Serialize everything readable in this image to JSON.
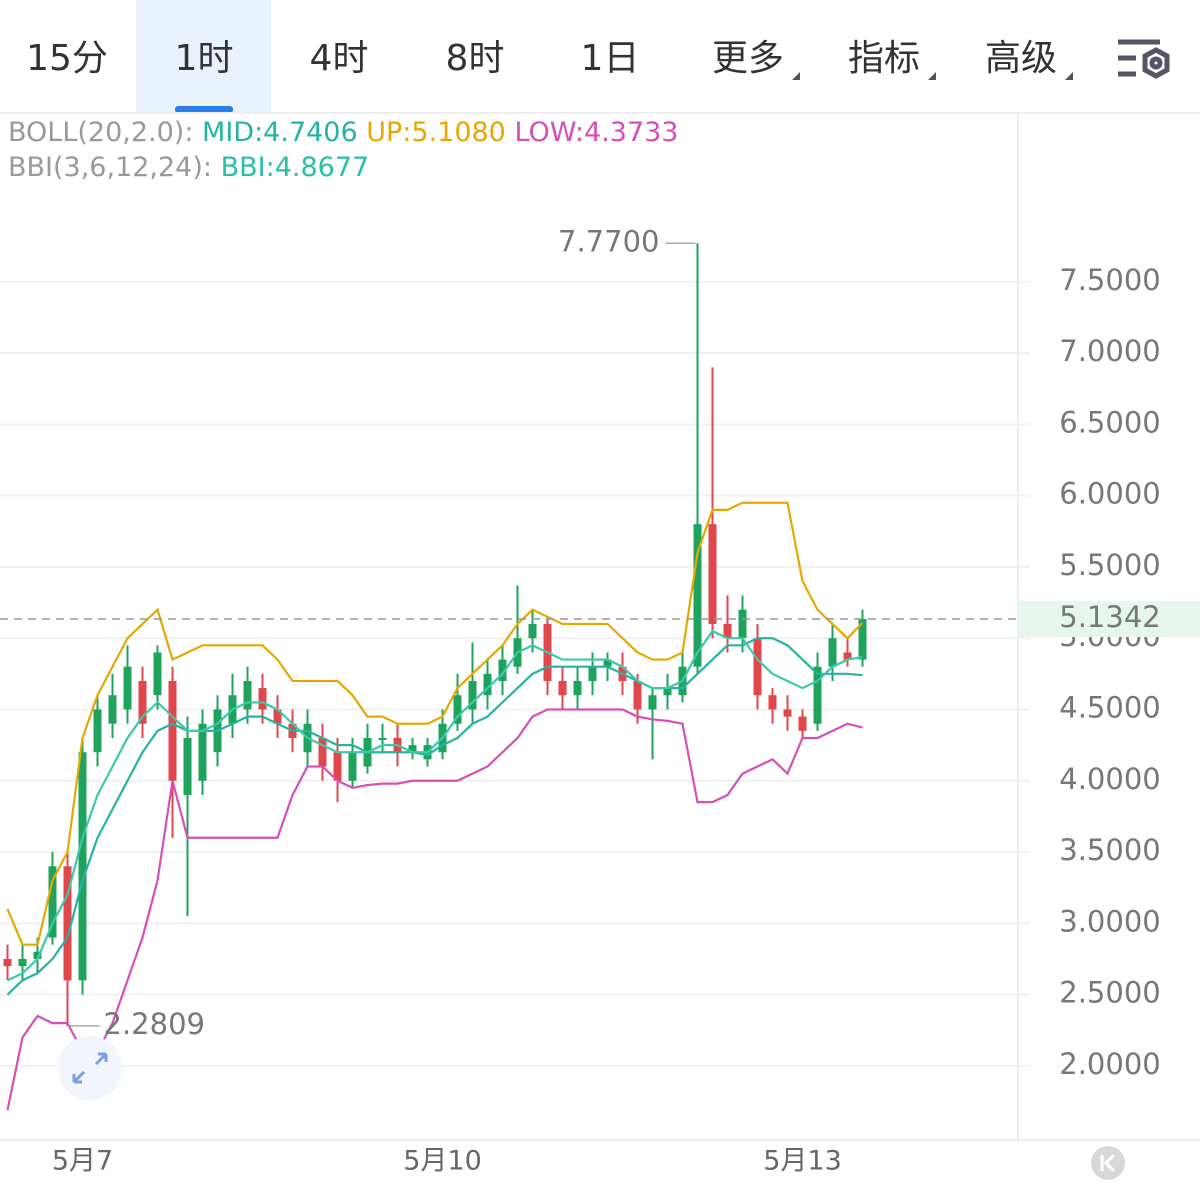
{
  "tabs": [
    "15分",
    "1时",
    "4时",
    "8时",
    "1日",
    "更多",
    "指标",
    "高级"
  ],
  "selected_tab": 1,
  "indicators": {
    "boll": {
      "name": "BOLL(20,2.0):",
      "mid": "MID:4.7406",
      "up": "UP:5.1080",
      "low": "LOW:4.3733"
    },
    "bbi": {
      "name": "BBI(3,6,12,24):",
      "bbi": "BBI:4.8677"
    }
  },
  "chart_data": {
    "type": "candlestick",
    "categories": [
      null,
      null,
      null,
      null,
      null,
      "5月7",
      null,
      null,
      null,
      null,
      null,
      null,
      null,
      null,
      null,
      null,
      null,
      null,
      null,
      null,
      null,
      null,
      null,
      null,
      null,
      null,
      null,
      null,
      null,
      "5月10",
      null,
      null,
      null,
      null,
      null,
      null,
      null,
      null,
      null,
      null,
      null,
      null,
      null,
      null,
      null,
      null,
      null,
      null,
      null,
      null,
      null,
      null,
      null,
      "5月13",
      null,
      null,
      null,
      null
    ],
    "open": [
      2.75,
      2.7,
      2.75,
      2.9,
      3.4,
      2.6,
      4.2,
      4.4,
      4.5,
      4.7,
      4.6,
      4.7,
      3.9,
      4.0,
      4.2,
      4.4,
      4.5,
      4.65,
      4.5,
      4.4,
      4.2,
      4.3,
      4.2,
      4.0,
      4.1,
      4.3,
      4.3,
      4.2,
      4.15,
      4.2,
      4.4,
      4.5,
      4.6,
      4.7,
      4.8,
      5.0,
      5.1,
      4.7,
      4.6,
      4.7,
      4.8,
      4.8,
      4.7,
      4.5,
      4.6,
      4.6,
      4.8,
      5.8,
      5.1,
      5.0,
      5.0,
      4.6,
      4.5,
      4.45,
      4.4,
      4.8,
      4.9,
      4.85
    ],
    "high": [
      2.85,
      2.85,
      2.9,
      3.5,
      3.5,
      4.3,
      4.6,
      4.75,
      4.95,
      4.8,
      4.95,
      4.8,
      4.45,
      4.5,
      4.6,
      4.75,
      4.8,
      4.75,
      4.6,
      4.5,
      4.5,
      4.4,
      4.3,
      4.3,
      4.4,
      4.4,
      4.4,
      4.3,
      4.3,
      4.5,
      4.75,
      4.97,
      4.85,
      4.95,
      5.37,
      5.2,
      5.15,
      4.8,
      4.8,
      4.9,
      4.9,
      4.9,
      4.75,
      4.65,
      4.75,
      4.9,
      7.77,
      6.9,
      5.3,
      5.3,
      5.1,
      4.65,
      4.6,
      4.5,
      4.9,
      5.1,
      5.0,
      5.2
    ],
    "low": [
      2.6,
      2.6,
      2.65,
      2.85,
      2.2809,
      2.5,
      4.1,
      4.3,
      4.4,
      4.3,
      4.5,
      3.6,
      3.05,
      3.9,
      4.1,
      4.3,
      4.4,
      4.4,
      4.3,
      4.2,
      4.1,
      4.0,
      3.85,
      3.95,
      4.05,
      4.2,
      4.1,
      4.15,
      4.1,
      4.15,
      4.35,
      4.4,
      4.5,
      4.6,
      4.75,
      4.9,
      4.6,
      4.5,
      4.5,
      4.6,
      4.7,
      4.6,
      4.4,
      4.15,
      4.5,
      4.55,
      4.75,
      5.0,
      4.9,
      4.9,
      4.5,
      4.4,
      4.35,
      4.3,
      4.35,
      4.7,
      4.8,
      4.8
    ],
    "close": [
      2.7,
      2.75,
      2.8,
      3.4,
      2.6,
      4.2,
      4.5,
      4.6,
      4.8,
      4.4,
      4.9,
      4.0,
      4.3,
      4.4,
      4.5,
      4.6,
      4.7,
      4.5,
      4.4,
      4.3,
      4.4,
      4.1,
      4.0,
      4.2,
      4.3,
      4.3,
      4.2,
      4.25,
      4.25,
      4.4,
      4.6,
      4.7,
      4.75,
      4.85,
      5.0,
      5.1,
      4.7,
      4.6,
      4.7,
      4.8,
      4.85,
      4.7,
      4.5,
      4.6,
      4.65,
      4.8,
      5.8,
      5.1,
      5.0,
      5.2,
      4.6,
      4.5,
      4.45,
      4.35,
      4.8,
      5.0,
      4.85,
      5.1342
    ],
    "up_color": "#1fa35c",
    "down_color": "#e0474c",
    "series": [
      {
        "color": "#e6a800",
        "values": [
          3.1,
          2.85,
          2.85,
          3.3,
          3.5,
          4.3,
          4.6,
          4.8,
          5.0,
          5.1,
          5.2,
          4.85,
          4.9,
          4.95,
          4.95,
          4.95,
          4.95,
          4.95,
          4.85,
          4.7,
          4.7,
          4.7,
          4.7,
          4.6,
          4.45,
          4.45,
          4.4,
          4.4,
          4.4,
          4.45,
          4.65,
          4.75,
          4.85,
          4.95,
          5.1,
          5.2,
          5.15,
          5.1,
          5.1,
          5.1,
          5.1,
          5.0,
          4.9,
          4.85,
          4.85,
          4.9,
          5.6,
          5.9,
          5.9,
          5.95,
          5.95,
          5.95,
          5.95,
          5.4,
          5.2,
          5.1,
          5.0,
          5.108
        ]
      },
      {
        "color": "#26b3a0",
        "values": [
          2.5,
          2.6,
          2.65,
          2.75,
          2.9,
          3.3,
          3.6,
          3.8,
          4.0,
          4.2,
          4.35,
          4.4,
          4.35,
          4.35,
          4.35,
          4.4,
          4.45,
          4.45,
          4.4,
          4.35,
          4.35,
          4.3,
          4.25,
          4.25,
          4.2,
          4.2,
          4.2,
          4.2,
          4.18,
          4.25,
          4.3,
          4.4,
          4.45,
          4.55,
          4.65,
          4.75,
          4.8,
          4.8,
          4.8,
          4.8,
          4.8,
          4.75,
          4.7,
          4.65,
          4.65,
          4.65,
          4.75,
          4.85,
          4.95,
          4.95,
          5.0,
          5.0,
          4.95,
          4.85,
          4.75,
          4.75,
          4.75,
          4.7406
        ]
      },
      {
        "color": "#d64fb6",
        "values": [
          1.69,
          2.2,
          2.35,
          2.3,
          2.3,
          2.1,
          2.1,
          2.3,
          2.6,
          2.9,
          3.3,
          4.0,
          3.6,
          3.6,
          3.6,
          3.6,
          3.6,
          3.6,
          3.6,
          3.9,
          4.1,
          4.1,
          4.0,
          3.95,
          3.97,
          3.98,
          3.98,
          4.0,
          4.0,
          4.0,
          4.0,
          4.05,
          4.1,
          4.2,
          4.3,
          4.45,
          4.5,
          4.5,
          4.5,
          4.5,
          4.5,
          4.5,
          4.45,
          4.43,
          4.42,
          4.4,
          3.85,
          3.85,
          3.9,
          4.05,
          4.1,
          4.15,
          4.05,
          4.3,
          4.3,
          4.35,
          4.4,
          4.3733
        ]
      },
      {
        "color": "#3cc9a8",
        "values": [
          2.6,
          2.65,
          2.75,
          3.0,
          3.2,
          3.6,
          3.9,
          4.1,
          4.3,
          4.45,
          4.55,
          4.45,
          4.35,
          4.35,
          4.4,
          4.5,
          4.55,
          4.55,
          4.5,
          4.4,
          4.3,
          4.25,
          4.2,
          4.2,
          4.2,
          4.25,
          4.25,
          4.2,
          4.2,
          4.3,
          4.45,
          4.55,
          4.65,
          4.75,
          4.9,
          4.95,
          4.9,
          4.85,
          4.85,
          4.85,
          4.85,
          4.8,
          4.7,
          4.65,
          4.65,
          4.7,
          4.9,
          5.05,
          5.0,
          5.0,
          4.85,
          4.75,
          4.7,
          4.65,
          4.7,
          4.8,
          4.85,
          4.8677
        ]
      }
    ],
    "ylim": [
      1.48,
      8.67
    ],
    "yticks": [
      {
        "value": 2,
        "label": "2.0000"
      },
      {
        "value": 2.5,
        "label": "2.5000"
      },
      {
        "value": 3,
        "label": "3.0000"
      },
      {
        "value": 3.5,
        "label": "3.5000"
      },
      {
        "value": 4,
        "label": "4.0000"
      },
      {
        "value": 4.5,
        "label": "4.5000"
      },
      {
        "value": 5,
        "label": "5.0000"
      },
      {
        "value": 5.5,
        "label": "5.5000"
      },
      {
        "value": 6,
        "label": "6.0000"
      },
      {
        "value": 6.5,
        "label": "6.5000"
      },
      {
        "value": 7,
        "label": "7.0000"
      },
      {
        "value": 7.5,
        "label": "7.5000"
      }
    ],
    "grid": true,
    "last_price": 5.1342,
    "max_label": {
      "value": 7.77,
      "label": "7.7700"
    },
    "min_label": {
      "value": 2.2809,
      "label": "2.2809"
    }
  }
}
